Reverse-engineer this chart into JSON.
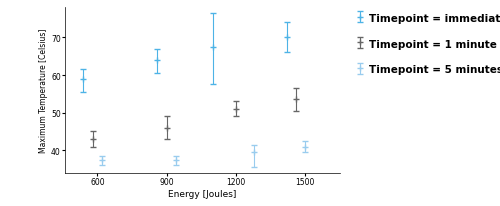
{
  "series": [
    {
      "label": "Timepoint = immediate",
      "color": "#4db3e6",
      "marker": "+",
      "x": [
        540,
        860,
        1100,
        1420
      ],
      "y": [
        59,
        64,
        67.5,
        70
      ],
      "yerr_lo": [
        3.5,
        3.5,
        10,
        4
      ],
      "yerr_hi": [
        2.5,
        3,
        9,
        4
      ]
    },
    {
      "label": "Timepoint = 1 minute",
      "color": "#666666",
      "marker": "+",
      "x": [
        580,
        900,
        1200,
        1460
      ],
      "y": [
        43,
        46,
        51,
        53.5
      ],
      "yerr_lo": [
        2,
        3,
        2,
        3
      ],
      "yerr_hi": [
        2,
        3,
        2,
        3
      ]
    },
    {
      "label": "Timepoint = 5 minutes",
      "color": "#99ccee",
      "marker": "+",
      "x": [
        620,
        940,
        1280,
        1500
      ],
      "y": [
        37.5,
        37.5,
        39.5,
        41
      ],
      "yerr_lo": [
        1.5,
        1.5,
        4,
        1.5
      ],
      "yerr_hi": [
        1,
        1,
        2,
        1.5
      ]
    }
  ],
  "xlabel": "Energy [Joules]",
  "ylabel": "Maximum Temperature [Celsius]",
  "xlim": [
    460,
    1650
  ],
  "ylim": [
    34,
    78
  ],
  "xticks": [
    600,
    900,
    1200,
    1500
  ],
  "yticks": [
    40,
    50,
    60,
    70
  ],
  "plot_bg": "#ffffff"
}
